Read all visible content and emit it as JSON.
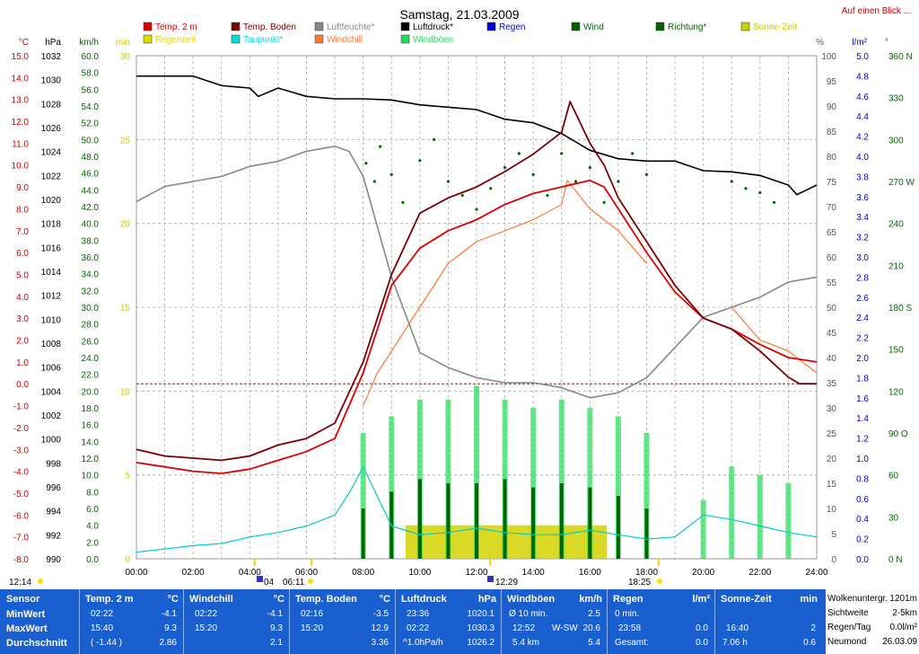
{
  "header": {
    "title": "Samstag, 21.03.2009",
    "link": "Auf einen Blick ..."
  },
  "legend": [
    {
      "label": "Temp. 2 m",
      "color": "#dd0000",
      "col": 0,
      "row": 0
    },
    {
      "label": "Regenzeit",
      "color": "#dddd00",
      "col": 0,
      "row": 1
    },
    {
      "label": "Temp. Boden",
      "color": "#7a0000",
      "col": 1,
      "row": 0
    },
    {
      "label": "Taupunkt*",
      "color": "#00dddd",
      "col": 1,
      "row": 1
    },
    {
      "label": "Luftfeuchte*",
      "color": "#888888",
      "col": 2,
      "row": 0
    },
    {
      "label": "Windchill",
      "color": "#ff7733",
      "col": 2,
      "row": 1
    },
    {
      "label": "Luftdruck*",
      "color": "#000000",
      "col": 3,
      "row": 0
    },
    {
      "label": "Windböen",
      "color": "#22dd55",
      "col": 3,
      "row": 1
    },
    {
      "label": "Regen",
      "color": "#0000dd",
      "col": 4,
      "row": 0
    },
    {
      "label": "Wind",
      "color": "#006600",
      "col": 5,
      "row": 0
    },
    {
      "label": "Richtung*",
      "color": "#006600",
      "col": 6,
      "row": 0
    },
    {
      "label": "Sonne-Zeit",
      "color": "#cccc00",
      "col": 7,
      "row": 0
    }
  ],
  "axes": {
    "left": [
      {
        "unit": "°C",
        "color": "#cc0000",
        "min": -8,
        "max": 15,
        "step": 1,
        "dec": 1
      },
      {
        "unit": "hPa",
        "color": "#000000",
        "min": 990,
        "max": 1032,
        "step": 2,
        "dec": 0
      },
      {
        "unit": "km/h",
        "color": "#006600",
        "min": 0,
        "max": 60,
        "step": 2,
        "dec": 1
      },
      {
        "unit": "min",
        "color": "#cccc00",
        "min": 0,
        "max": 30,
        "step": 5,
        "dec": 0
      }
    ],
    "right": [
      {
        "unit": "%",
        "color": "#555555",
        "min": 0,
        "max": 100,
        "step": 5,
        "dec": 0
      },
      {
        "unit": "l/m²",
        "color": "#0000cc",
        "min": 0,
        "max": 5,
        "step": 0.2,
        "dec": 1
      },
      {
        "unit": "°",
        "color": "#006600"
      }
    ],
    "direction_ticks": [
      {
        "deg": 360,
        "label": "360 N"
      },
      {
        "deg": 330,
        "label": "330"
      },
      {
        "deg": 300,
        "label": "300"
      },
      {
        "deg": 270,
        "label": "270 W"
      },
      {
        "deg": 240,
        "label": "240"
      },
      {
        "deg": 210,
        "label": "210"
      },
      {
        "deg": 180,
        "label": "180 S"
      },
      {
        "deg": 150,
        "label": "150"
      },
      {
        "deg": 120,
        "label": "120"
      },
      {
        "deg": 90,
        "label": "90 O"
      },
      {
        "deg": 60,
        "label": "60"
      },
      {
        "deg": 30,
        "label": "30"
      },
      {
        "deg": 0,
        "label": "0 N"
      }
    ],
    "time_labels": [
      "00:00",
      "02:00",
      "04:00",
      "06:00",
      "08:00",
      "10:00",
      "12:00",
      "14:00",
      "16:00",
      "18:00",
      "20:00",
      "22:00",
      "24:00"
    ]
  },
  "markers": {
    "moonrise": "12:14",
    "moonset": "04",
    "sunrise": "06:11",
    "noon": "12:29",
    "sunset": "18:25"
  },
  "chart_data": {
    "type": "line",
    "title": "Samstag, 21.03.2009",
    "x_range": [
      "00:00",
      "24:00"
    ],
    "zero_line_celsius": 0,
    "series": [
      {
        "name": "Temp. 2 m",
        "unit": "°C",
        "x": [
          0,
          1,
          2,
          3,
          4,
          5,
          6,
          7,
          8,
          9,
          10,
          11,
          12,
          13,
          14,
          15,
          16,
          16.5,
          17,
          18,
          19,
          20,
          21,
          22,
          23,
          24
        ],
        "y": [
          -3.6,
          -3.8,
          -4.0,
          -4.1,
          -3.9,
          -3.5,
          -3.1,
          -2.5,
          0.5,
          4.5,
          6.2,
          7.0,
          7.5,
          8.2,
          8.7,
          9.0,
          9.3,
          9.0,
          8.0,
          6.0,
          4.2,
          3.0,
          2.5,
          1.8,
          1.2,
          1.0
        ]
      },
      {
        "name": "Temp. Boden",
        "unit": "°C",
        "x": [
          0,
          1,
          2,
          3,
          4,
          5,
          6,
          7,
          8,
          9,
          10,
          11,
          12,
          13,
          14,
          15,
          15.3,
          16,
          16.5,
          17,
          18,
          19,
          20,
          21,
          22,
          23,
          23.4,
          24
        ],
        "y": [
          -3.0,
          -3.3,
          -3.4,
          -3.5,
          -3.3,
          -2.8,
          -2.5,
          -1.8,
          1.0,
          5.0,
          7.8,
          8.5,
          9.0,
          9.7,
          10.5,
          11.5,
          12.9,
          11.0,
          10.0,
          8.5,
          6.5,
          4.5,
          3.0,
          2.5,
          1.5,
          0.3,
          0.0,
          0.0
        ]
      },
      {
        "name": "Windchill",
        "unit": "°C",
        "x": [
          8,
          8.5,
          9,
          10,
          11,
          12,
          13,
          14,
          15,
          15.2,
          16,
          17,
          18,
          19,
          20,
          21,
          22,
          23,
          24
        ],
        "y": [
          -1.0,
          0.5,
          1.5,
          3.5,
          5.5,
          6.5,
          7.0,
          7.5,
          8.2,
          9.3,
          8.0,
          7.0,
          5.5,
          null,
          null,
          3.5,
          2.0,
          1.5,
          0.5
        ]
      },
      {
        "name": "Luftfeuchte*",
        "unit": "%",
        "x": [
          0,
          1,
          2,
          3,
          4,
          5,
          6,
          7,
          7.5,
          8,
          9,
          10,
          11,
          12,
          13,
          14,
          15,
          16,
          17,
          18,
          19,
          20,
          21,
          22,
          23,
          24
        ],
        "y": [
          71,
          74,
          75,
          76,
          78,
          79,
          81,
          82,
          81,
          76,
          56,
          41,
          38,
          36,
          35,
          35,
          34,
          32,
          33,
          36,
          42,
          48,
          50,
          52,
          55,
          56
        ]
      },
      {
        "name": "Luftdruck*",
        "unit": "hPa",
        "x": [
          0,
          2,
          3,
          4,
          4.3,
          5,
          6,
          7,
          8,
          9,
          10,
          12,
          13,
          14,
          15,
          16,
          17,
          18,
          19,
          20,
          21,
          22,
          23,
          23.3,
          24
        ],
        "y": [
          1030.3,
          1030.3,
          1029.5,
          1029.3,
          1028.6,
          1029.3,
          1028.6,
          1028.4,
          1028.4,
          1028.3,
          1027.9,
          1027.5,
          1026.7,
          1026.4,
          1025.5,
          1024.1,
          1023.4,
          1023.2,
          1023.2,
          1022.4,
          1022.3,
          1022.0,
          1021.2,
          1020.4,
          1021.2
        ]
      },
      {
        "name": "Taupunkt*",
        "unit": "°C",
        "x": [
          0,
          2,
          3,
          4,
          5,
          6,
          7,
          7.5,
          8,
          9,
          10,
          11,
          12,
          13,
          14,
          15,
          16,
          17,
          18,
          19,
          20,
          21,
          22,
          23,
          24
        ],
        "y": [
          -7.7,
          -7.4,
          -7.3,
          -7.0,
          -6.8,
          -6.5,
          -6.0,
          -5.0,
          -3.8,
          -6.5,
          -6.9,
          -6.8,
          -6.6,
          -6.8,
          -6.9,
          -6.9,
          -6.7,
          -6.9,
          -7.1,
          -7.0,
          -6.0,
          -6.2,
          -6.5,
          -6.8,
          -7.0
        ]
      },
      {
        "name": "Wind",
        "unit": "km/h",
        "x": [
          8,
          9,
          10,
          11,
          12,
          13,
          14,
          15,
          16,
          17,
          18
        ],
        "y": [
          6.0,
          8.0,
          9.5,
          9.0,
          9.0,
          9.5,
          8.5,
          9.0,
          8.5,
          7.5,
          6.0
        ]
      },
      {
        "name": "Windböen",
        "unit": "km/h",
        "x": [
          8,
          9,
          10,
          11,
          12,
          13,
          14,
          15,
          16,
          17,
          18,
          19,
          20,
          21,
          22,
          23
        ],
        "y": [
          15,
          17,
          19,
          19,
          20.6,
          19,
          18,
          19,
          18,
          17,
          15,
          0,
          7,
          11,
          10,
          9
        ]
      },
      {
        "name": "Sonne-Zeit",
        "unit": "min",
        "x": [
          9.5,
          16.6
        ],
        "y": [
          2,
          2
        ]
      },
      {
        "name": "Richtung*",
        "unit": "°",
        "points": [
          [
            8.1,
            283
          ],
          [
            8.4,
            270
          ],
          [
            8.6,
            295
          ],
          [
            9.0,
            275
          ],
          [
            9.4,
            255
          ],
          [
            10.0,
            285
          ],
          [
            10.5,
            300
          ],
          [
            11.0,
            270
          ],
          [
            11.5,
            260
          ],
          [
            12.0,
            250
          ],
          [
            12.5,
            265
          ],
          [
            13.0,
            280
          ],
          [
            13.5,
            290
          ],
          [
            14.0,
            275
          ],
          [
            14.5,
            260
          ],
          [
            15.0,
            290
          ],
          [
            15.5,
            270
          ],
          [
            16.0,
            280
          ],
          [
            16.5,
            255
          ],
          [
            17.0,
            270
          ],
          [
            17.5,
            290
          ],
          [
            18.0,
            275
          ],
          [
            21.0,
            270
          ],
          [
            21.5,
            265
          ],
          [
            22.0,
            262
          ],
          [
            22.5,
            255
          ]
        ]
      }
    ]
  },
  "stats": {
    "labels": {
      "sensor": "Sensor",
      "min": "MinWert",
      "max": "MaxWert",
      "avg": "Durchschnitt"
    },
    "temp2m": {
      "head": "Temp. 2 m",
      "unit": "°C",
      "min_t": "02:22",
      "min_v": "-4.1",
      "max_t": "15:40",
      "max_v": "9.3",
      "avg_t": "( -1.44 )",
      "avg_v": "2.86"
    },
    "windchill": {
      "head": "Windchill",
      "unit": "°C",
      "min_t": "02:22",
      "min_v": "-4.1",
      "max_t": "15:20",
      "max_v": "9.3",
      "avg_v": "2.1"
    },
    "tempboden": {
      "head": "Temp. Boden",
      "unit": "°C",
      "min_t": "02:16",
      "min_v": "-3.5",
      "max_t": "15:20",
      "max_v": "12.9",
      "avg_v": "3.36"
    },
    "luftdruck": {
      "head": "Luftdruck",
      "unit": "hPa",
      "min_t": "23:36",
      "min_v": "1020.1",
      "max_t": "02:22",
      "max_v": "1030.3",
      "avg_t": "^1.0hPa/h",
      "avg_v": "1026.2"
    },
    "windboeen": {
      "head": "Windböen",
      "unit": "km/h",
      "min_t": "Ø 10 min.",
      "min_v": "2.5",
      "max_t": "12:52",
      "max_dir": "W-SW",
      "max_v": "20.6",
      "avg_t": "5.4 km",
      "avg_v": "5.4"
    },
    "regen": {
      "head": "Regen",
      "unit": "l/m²",
      "min_t": "0 min.",
      "max_t": "23:58",
      "max_v": "0.0",
      "avg_t": "Gesamt:",
      "avg_v": "0.0"
    },
    "sonne": {
      "head": "Sonne-Zeit",
      "unit": "min",
      "max_t": "16:40",
      "max_v": "2",
      "avg_t": "7.06 h",
      "avg_v": "0.6"
    },
    "extra": [
      {
        "l": "Wolkenuntergr.",
        "v": "1201m"
      },
      {
        "l": "Sichtweite",
        "v": "2-5km"
      },
      {
        "l": "Regen/Tag",
        "v": "0.0l/m²"
      },
      {
        "l": "Neumond",
        "v": "26.03.09"
      }
    ]
  }
}
